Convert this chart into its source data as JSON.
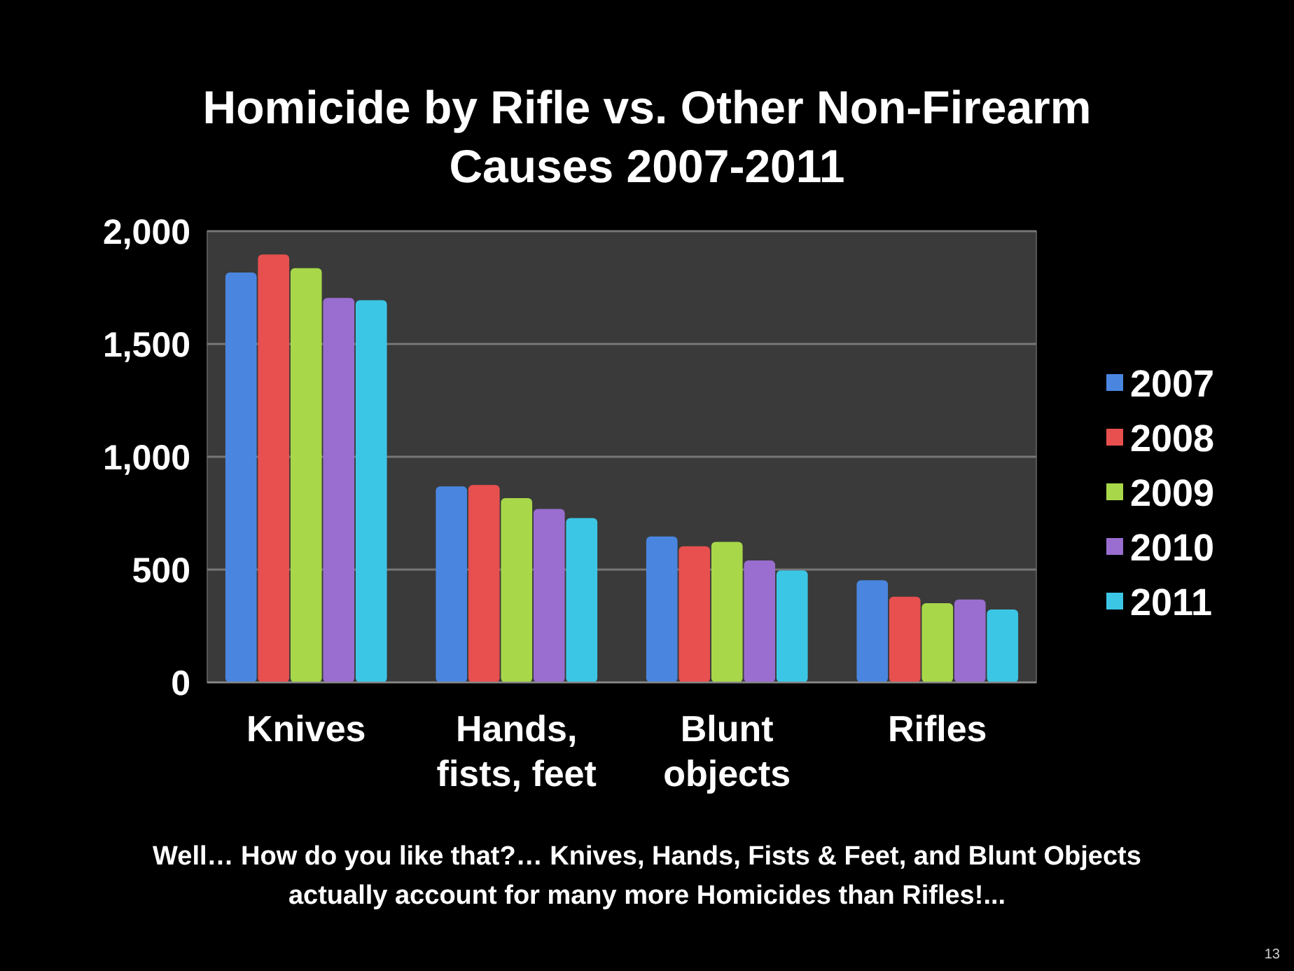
{
  "chart_data": {
    "type": "bar",
    "title": "Homicide by Rifle vs. Other Non-Firearm Causes 2007-2011",
    "categories": [
      "Knives",
      "Hands, fists, feet",
      "Blunt objects",
      "Rifles"
    ],
    "series": [
      {
        "name": "2007",
        "color": "#4a86e0",
        "values": [
          1817,
          869,
          647,
          453
        ]
      },
      {
        "name": "2008",
        "color": "#e8504f",
        "values": [
          1897,
          875,
          603,
          380
        ]
      },
      {
        "name": "2009",
        "color": "#a8d84a",
        "values": [
          1836,
          817,
          623,
          351
        ]
      },
      {
        "name": "2010",
        "color": "#9a6ed0",
        "values": [
          1704,
          769,
          540,
          367
        ]
      },
      {
        "name": "2011",
        "color": "#3cc6e6",
        "values": [
          1694,
          728,
          496,
          323
        ]
      }
    ],
    "ylim": [
      0,
      2000
    ],
    "yticks": [
      0,
      500,
      {
        "value": 1000,
        "label": "1,000"
      },
      {
        "value": 1500,
        "label": "1,500"
      },
      {
        "value": 2000,
        "label": "2,000"
      }
    ],
    "grid": "y",
    "legend": "right",
    "annotations": [
      "Well… How do you like that?… Knives, Hands, Fists & Feet, and Blunt Objects actually account for many more Homicides than Rifles!...",
      "13"
    ]
  }
}
